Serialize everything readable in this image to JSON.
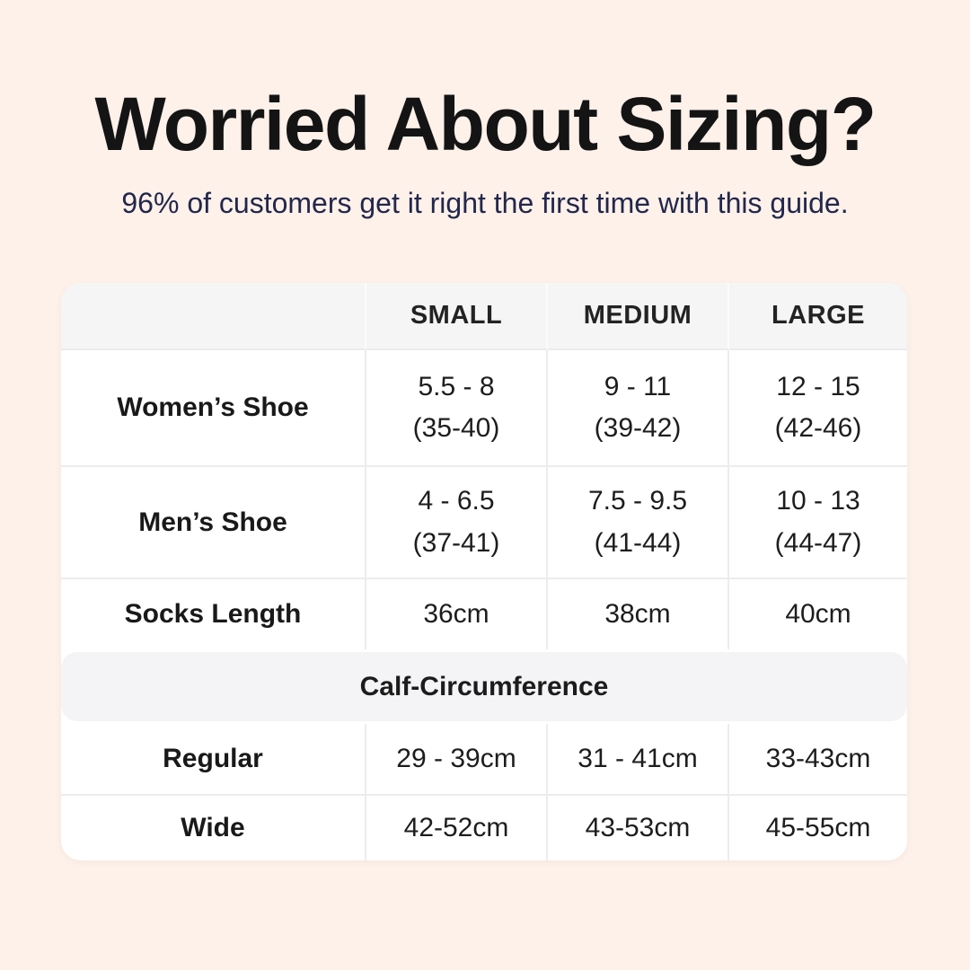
{
  "page": {
    "title": "Worried About Sizing?",
    "subtitle": "96% of customers get it right the first time with this guide."
  },
  "colors": {
    "background": "#fdf1ea",
    "card": "#ffffff",
    "header_band": "#f5f5f6",
    "divider": "#ececee",
    "title_text": "#141414",
    "subtitle_text": "#23274b",
    "cell_text": "#1d1d1d"
  },
  "table": {
    "header": {
      "c1": "SMALL",
      "c2": "MEDIUM",
      "c3": "LARGE"
    },
    "rows": [
      {
        "label": "Women’s Shoe",
        "cells": [
          {
            "l1": "5.5 - 8",
            "l2": "(35-40)"
          },
          {
            "l1": "9 - 11",
            "l2": "(39-42)"
          },
          {
            "l1": "12 - 15",
            "l2": "(42-46)"
          }
        ]
      },
      {
        "label": "Men’s Shoe",
        "cells": [
          {
            "l1": "4 - 6.5",
            "l2": "(37-41)"
          },
          {
            "l1": "7.5 - 9.5",
            "l2": "(41-44)"
          },
          {
            "l1": "10 - 13",
            "l2": "(44-47)"
          }
        ]
      },
      {
        "label": "Socks Length",
        "cells": [
          {
            "l1": "36cm"
          },
          {
            "l1": "38cm"
          },
          {
            "l1": "40cm"
          }
        ]
      }
    ],
    "section": {
      "header": "Calf-Circumference",
      "rows": [
        {
          "label": "Regular",
          "cells": [
            {
              "l1": "29 - 39cm"
            },
            {
              "l1": "31 - 41cm"
            },
            {
              "l1": "33-43cm"
            }
          ]
        },
        {
          "label": "Wide",
          "cells": [
            {
              "l1": "42-52cm"
            },
            {
              "l1": "43-53cm"
            },
            {
              "l1": "45-55cm"
            }
          ]
        }
      ]
    }
  },
  "chart_data": {
    "type": "table",
    "title": "Worried About Sizing?",
    "subtitle": "96% of customers get it right the first time with this guide.",
    "columns": [
      "",
      "SMALL",
      "MEDIUM",
      "LARGE"
    ],
    "rows": [
      [
        "Women’s Shoe",
        "5.5 - 8 (35-40)",
        "9 - 11 (39-42)",
        "12 - 15 (42-46)"
      ],
      [
        "Men’s Shoe",
        "4 - 6.5 (37-41)",
        "7.5 - 9.5 (41-44)",
        "10 - 13 (44-47)"
      ],
      [
        "Socks Length",
        "36cm",
        "38cm",
        "40cm"
      ],
      [
        "Calf-Circumference",
        "",
        "",
        ""
      ],
      [
        "Regular",
        "29 - 39cm",
        "31 - 41cm",
        "33-43cm"
      ],
      [
        "Wide",
        "42-52cm",
        "43-53cm",
        "45-55cm"
      ]
    ]
  }
}
